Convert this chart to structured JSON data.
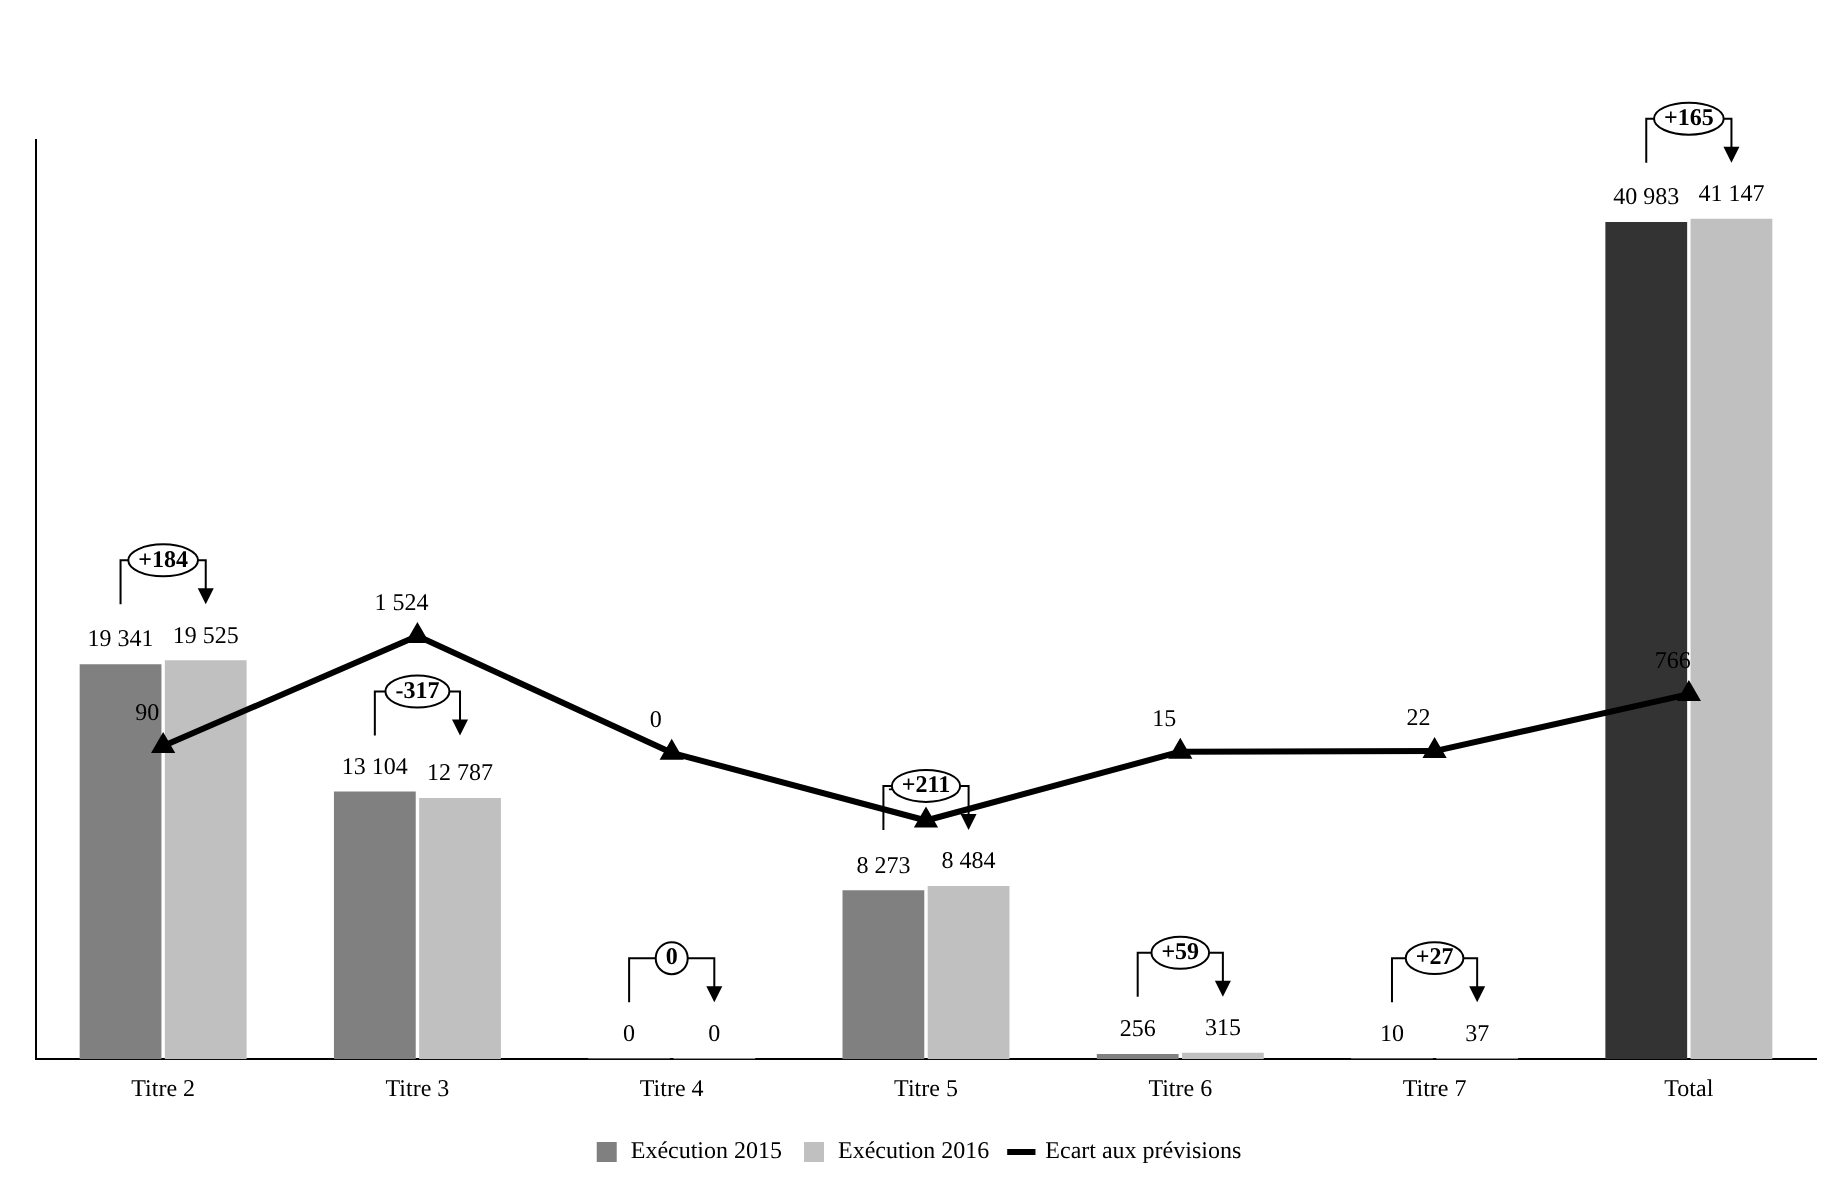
{
  "chart_data": {
    "type": "bar",
    "categories": [
      "Titre 2",
      "Titre 3",
      "Titre 4",
      "Titre 5",
      "Titre 6",
      "Titre 7",
      "Total"
    ],
    "series": [
      {
        "name": "Exécution 2015",
        "color": "#808080",
        "colors": [
          "#808080",
          "#808080",
          "#808080",
          "#808080",
          "#808080",
          "#808080",
          "#333333"
        ],
        "values": [
          19341,
          13104,
          0,
          8273,
          256,
          10,
          40983
        ]
      },
      {
        "name": "Exécution 2016",
        "color": "#c0c0c0",
        "values": [
          19525,
          12787,
          0,
          8484,
          315,
          37,
          41147
        ]
      },
      {
        "name": "Ecart aux prévisions",
        "type": "line",
        "axis": "y2",
        "color": "#000000",
        "values": [
          90,
          1524,
          0,
          -884,
          15,
          22,
          766
        ]
      }
    ],
    "y2lim": [
      -4000,
      8000
    ],
    "data_labels": true,
    "marker": "triangle",
    "legend": "bottom",
    "grid": false,
    "tick_labels": "x",
    "annotations": [
      "+184",
      "-317",
      "0",
      "+211",
      "+59",
      "+27",
      "+165"
    ]
  }
}
